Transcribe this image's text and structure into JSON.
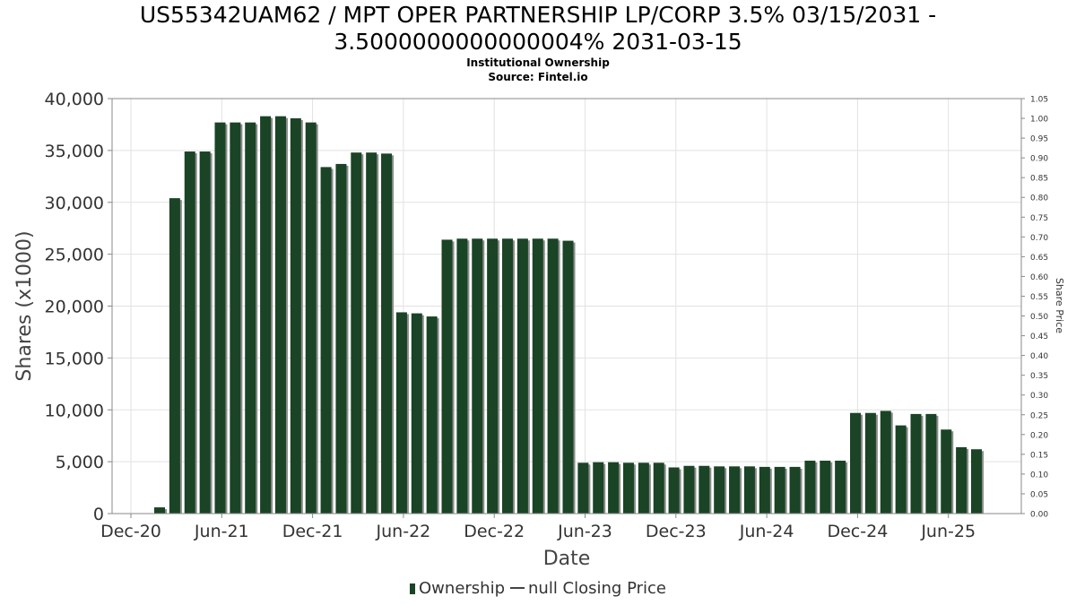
{
  "title": {
    "line1": "US55342UAM62 / MPT OPER PARTNERSHIP LP/CORP 3.5% 03/15/2031 -",
    "line2": "3.5000000000000004% 2031-03-15",
    "subtitle": "Institutional Ownership",
    "source": "Source: Fintel.io"
  },
  "legend": {
    "ownership": "Ownership",
    "price": "null Closing Price"
  },
  "chart_data": {
    "type": "bar",
    "xlabel": "Date",
    "ylabel": "Shares (x1000)",
    "y2label": "Share Price",
    "ylim": [
      0,
      40000
    ],
    "y2lim": [
      0,
      1.05
    ],
    "yticks": [
      "0",
      "5,000",
      "10,000",
      "15,000",
      "20,000",
      "25,000",
      "30,000",
      "35,000",
      "40,000"
    ],
    "y2ticks": [
      "0.00",
      "0.05",
      "0.10",
      "0.15",
      "0.20",
      "0.25",
      "0.30",
      "0.35",
      "0.40",
      "0.45",
      "0.50",
      "0.55",
      "0.60",
      "0.65",
      "0.70",
      "0.75",
      "0.80",
      "0.85",
      "0.90",
      "0.95",
      "1.00",
      "1.05"
    ],
    "xticks": [
      "Dec-20",
      "Jun-21",
      "Dec-21",
      "Jun-22",
      "Dec-22",
      "Jun-23",
      "Dec-23",
      "Jun-24",
      "Dec-24",
      "Jun-25"
    ],
    "grid": true,
    "legend_position": "bottom",
    "colors": {
      "bar": "#1a4425",
      "bar_shadow": "#8c8c8c"
    },
    "series": [
      {
        "name": "Ownership",
        "values": [
          600,
          30400,
          34900,
          34900,
          37700,
          37700,
          37700,
          38300,
          38300,
          38100,
          37700,
          33400,
          33700,
          34800,
          34800,
          34700,
          19400,
          19300,
          19000,
          26400,
          26500,
          26500,
          26500,
          26500,
          26500,
          26500,
          26500,
          26300,
          4900,
          4950,
          4950,
          4900,
          4900,
          4900,
          4450,
          4600,
          4600,
          4550,
          4550,
          4550,
          4500,
          4500,
          4500,
          5100,
          5100,
          5100,
          9700,
          9700,
          9900,
          8500,
          9600,
          9600,
          8100,
          6400,
          6200
        ]
      }
    ]
  }
}
